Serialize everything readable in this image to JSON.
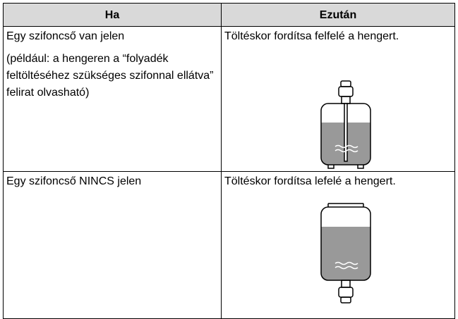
{
  "table": {
    "header": [
      "Ha",
      "Ezután"
    ],
    "rows": [
      [
        [
          "Egy szifoncső van jelen",
          "(például: a hengeren a “folyadék feltöltéséhez szükséges szifonnal ellátva” felirat olvasható)"
        ],
        [
          "Töltéskor fordítsa felfelé a hengert."
        ]
      ],
      [
        [
          "Egy szifoncső NINCS jelen"
        ],
        [
          "Töltéskor fordítsa lefelé a hengert."
        ]
      ]
    ]
  }
}
